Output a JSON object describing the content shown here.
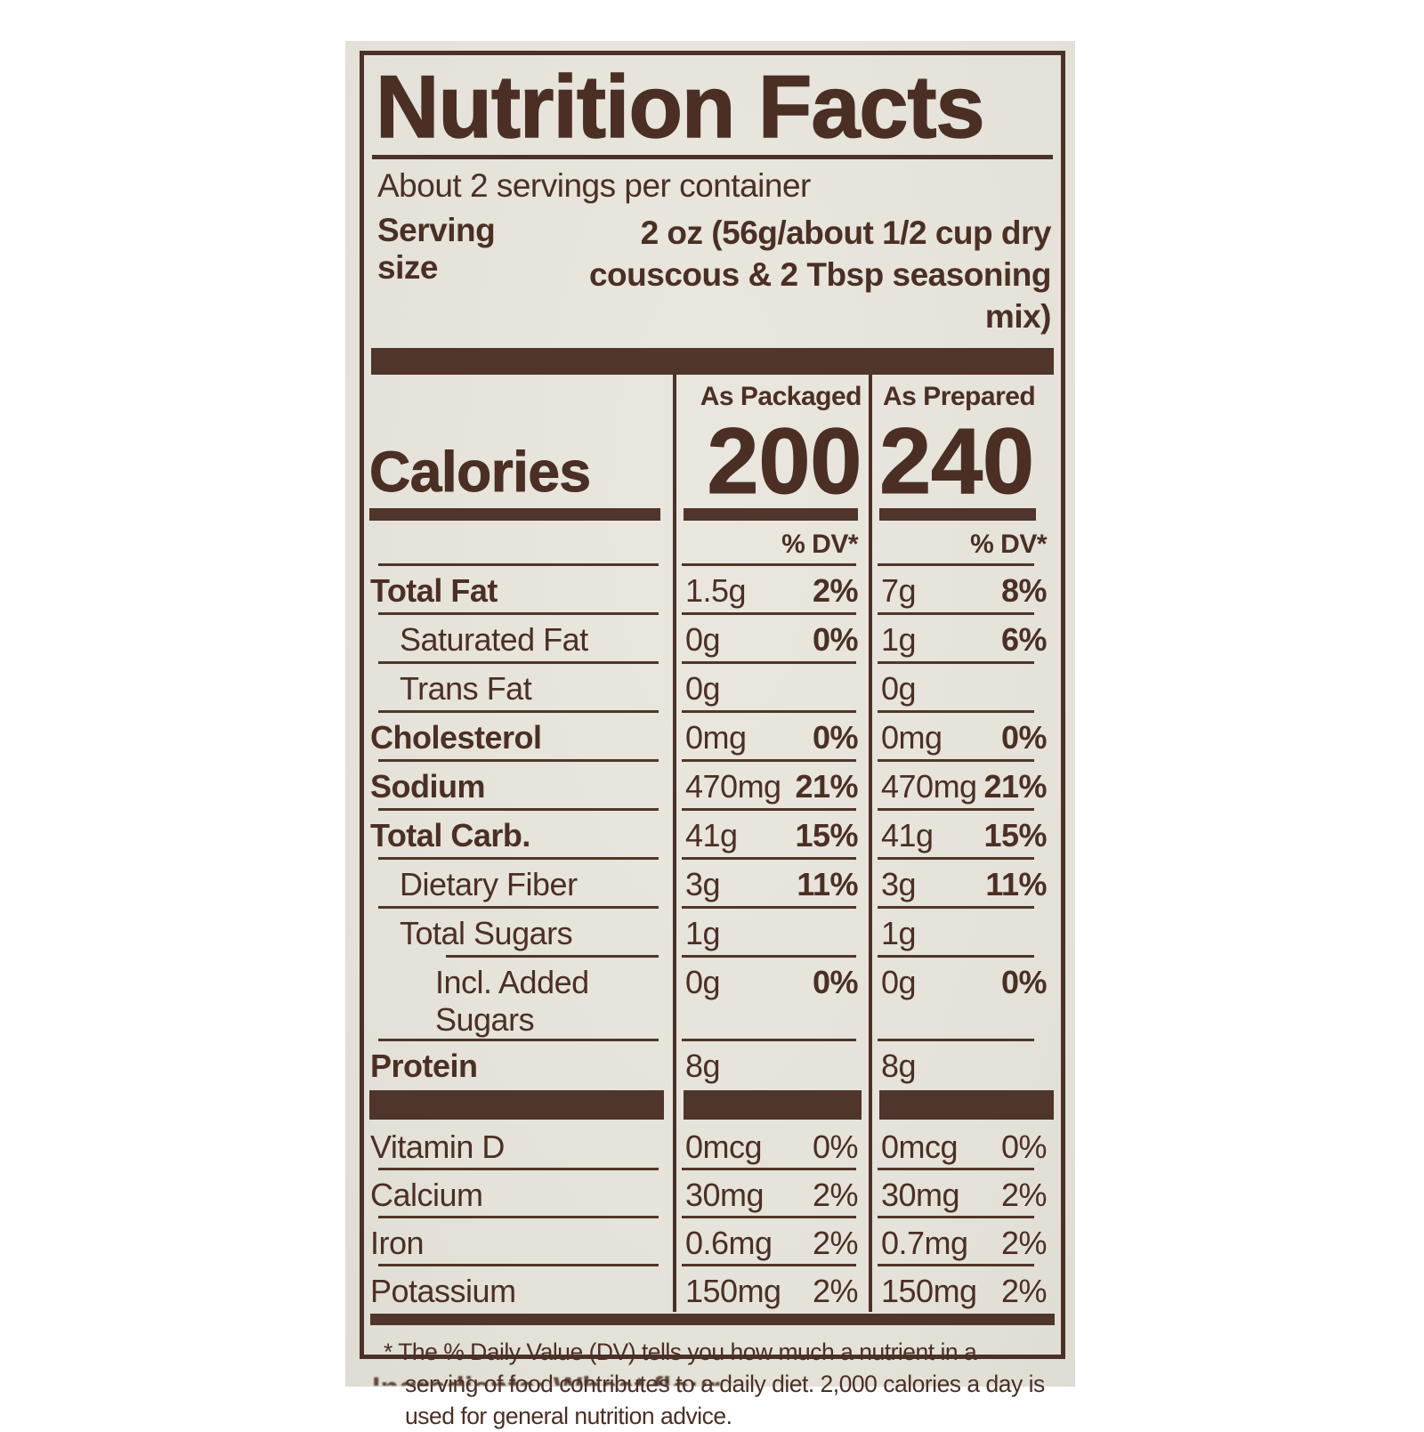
{
  "label": {
    "title": "Nutrition Facts",
    "servings_per_container": "About 2 servings per container",
    "serving_size_label": "Serving size",
    "serving_size_value_line1": "2 oz (56g/about 1/2 cup dry",
    "serving_size_value_line2": "couscous & 2 Tbsp seasoning mix)",
    "columns": {
      "packaged": "As Packaged",
      "prepared": "As Prepared"
    },
    "calories_label": "Calories",
    "calories": {
      "as_packaged": "200",
      "as_prepared": "240"
    },
    "dv_header": "% DV*",
    "nutrients": [
      {
        "name": "Total Fat",
        "bold": true,
        "indent": 0,
        "packaged": {
          "amount": "1.5g",
          "dv": "2%"
        },
        "prepared": {
          "amount": "7g",
          "dv": "8%"
        }
      },
      {
        "name": "Saturated Fat",
        "bold": false,
        "indent": 1,
        "packaged": {
          "amount": "0g",
          "dv": "0%"
        },
        "prepared": {
          "amount": "1g",
          "dv": "6%"
        }
      },
      {
        "name": "Trans Fat",
        "bold": false,
        "indent": 1,
        "packaged": {
          "amount": "0g",
          "dv": ""
        },
        "prepared": {
          "amount": "0g",
          "dv": ""
        }
      },
      {
        "name": "Cholesterol",
        "bold": true,
        "indent": 0,
        "packaged": {
          "amount": "0mg",
          "dv": "0%"
        },
        "prepared": {
          "amount": "0mg",
          "dv": "0%"
        }
      },
      {
        "name": "Sodium",
        "bold": true,
        "indent": 0,
        "packaged": {
          "amount": "470mg",
          "dv": "21%"
        },
        "prepared": {
          "amount": "470mg",
          "dv": "21%"
        }
      },
      {
        "name": "Total Carb.",
        "bold": true,
        "indent": 0,
        "packaged": {
          "amount": "41g",
          "dv": "15%"
        },
        "prepared": {
          "amount": "41g",
          "dv": "15%"
        }
      },
      {
        "name": "Dietary Fiber",
        "bold": false,
        "indent": 1,
        "packaged": {
          "amount": "3g",
          "dv": "11%"
        },
        "prepared": {
          "amount": "3g",
          "dv": "11%"
        }
      },
      {
        "name": "Total Sugars",
        "bold": false,
        "indent": 1,
        "packaged": {
          "amount": "1g",
          "dv": ""
        },
        "prepared": {
          "amount": "1g",
          "dv": ""
        }
      },
      {
        "name": "Incl. Added Sugars",
        "bold": false,
        "indent": 2,
        "packaged": {
          "amount": "0g",
          "dv": "0%"
        },
        "prepared": {
          "amount": "0g",
          "dv": "0%"
        }
      },
      {
        "name": "Protein",
        "bold": true,
        "indent": 0,
        "packaged": {
          "amount": "8g",
          "dv": ""
        },
        "prepared": {
          "amount": "8g",
          "dv": ""
        }
      }
    ],
    "micronutrients": [
      {
        "name": "Vitamin D",
        "packaged": {
          "amount": "0mcg",
          "dv": "0%"
        },
        "prepared": {
          "amount": "0mcg",
          "dv": "0%"
        }
      },
      {
        "name": "Calcium",
        "packaged": {
          "amount": "30mg",
          "dv": "2%"
        },
        "prepared": {
          "amount": "30mg",
          "dv": "2%"
        }
      },
      {
        "name": "Iron",
        "packaged": {
          "amount": "0.6mg",
          "dv": "2%"
        },
        "prepared": {
          "amount": "0.7mg",
          "dv": "2%"
        }
      },
      {
        "name": "Potassium",
        "packaged": {
          "amount": "150mg",
          "dv": "2%"
        },
        "prepared": {
          "amount": "150mg",
          "dv": "2%"
        }
      }
    ],
    "footnote": "* The % Daily Value (DV) tells you how much a nutrient in a serving of food contributes to a daily diet. 2,000 calories a day is used for general nutrition advice.",
    "ingredients_partial": "Ingredients: Wheat flour, ..."
  },
  "colors": {
    "ink": "#4b2f25",
    "bar": "#4f352b",
    "paper": "#e4e2d9",
    "page": "#ffffff"
  }
}
